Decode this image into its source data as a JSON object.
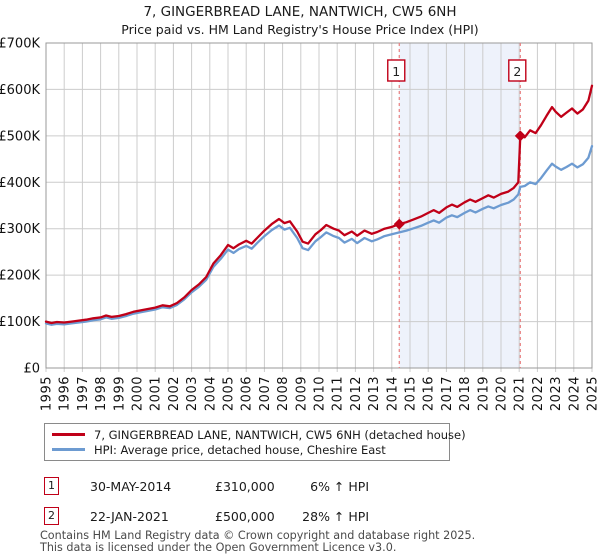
{
  "title": "7, GINGERBREAD LANE, NANTWICH, CW5 6NH",
  "subtitle": "Price paid vs. HM Land Registry's House Price Index (HPI)",
  "chart_data": {
    "type": "line",
    "x_axis": {
      "range": [
        1995,
        2025
      ],
      "tick_labels": [
        "1995",
        "1996",
        "1997",
        "1998",
        "1999",
        "2000",
        "2001",
        "2002",
        "2003",
        "2004",
        "2005",
        "2006",
        "2007",
        "2008",
        "2009",
        "2010",
        "2011",
        "2012",
        "2013",
        "2014",
        "2015",
        "2016",
        "2017",
        "2018",
        "2019",
        "2020",
        "2021",
        "2022",
        "2023",
        "2024",
        "2025"
      ]
    },
    "y_axis": {
      "range": [
        0,
        700
      ],
      "unit": "£K",
      "tick_labels": [
        "£0",
        "£100K",
        "£200K",
        "£300K",
        "£400K",
        "£500K",
        "£600K",
        "£700K"
      ],
      "tick_values": [
        0,
        100,
        200,
        300,
        400,
        500,
        600,
        700
      ]
    },
    "x": [
      1995.0,
      1995.3,
      1995.6,
      1996.0,
      1996.4,
      1996.8,
      1997.2,
      1997.6,
      1998.0,
      1998.3,
      1998.6,
      1999.0,
      1999.4,
      1999.8,
      2000.2,
      2000.6,
      2001.0,
      2001.4,
      2001.8,
      2002.2,
      2002.6,
      2003.0,
      2003.4,
      2003.8,
      2004.2,
      2004.6,
      2005.0,
      2005.3,
      2005.6,
      2006.0,
      2006.3,
      2006.6,
      2007.0,
      2007.4,
      2007.8,
      2008.1,
      2008.4,
      2008.8,
      2009.1,
      2009.4,
      2009.8,
      2010.1,
      2010.4,
      2010.8,
      2011.1,
      2011.4,
      2011.8,
      2012.1,
      2012.5,
      2012.9,
      2013.2,
      2013.6,
      2014.0,
      2014.41,
      2014.8,
      2015.2,
      2015.6,
      2016.0,
      2016.3,
      2016.6,
      2017.0,
      2017.3,
      2017.6,
      2018.0,
      2018.3,
      2018.6,
      2019.0,
      2019.3,
      2019.6,
      2020.0,
      2020.4,
      2020.7,
      2020.95,
      2021.06,
      2021.3,
      2021.6,
      2021.9,
      2022.2,
      2022.5,
      2022.8,
      2023.0,
      2023.3,
      2023.6,
      2023.9,
      2024.2,
      2024.5,
      2024.8,
      2025.0
    ],
    "series": [
      {
        "name": "7, GINGERBREAD LANE, NANTWICH, CW5 6NH (detached house)",
        "color": "#c00018",
        "values": [
          100,
          97,
          99,
          98,
          100,
          102,
          104,
          107,
          109,
          113,
          110,
          112,
          116,
          121,
          124,
          127,
          130,
          135,
          133,
          140,
          152,
          168,
          180,
          196,
          225,
          243,
          265,
          258,
          266,
          274,
          268,
          280,
          296,
          310,
          321,
          312,
          316,
          294,
          272,
          268,
          288,
          297,
          308,
          300,
          296,
          286,
          294,
          285,
          296,
          289,
          293,
          300,
          304,
          310,
          314,
          320,
          326,
          334,
          340,
          334,
          346,
          352,
          347,
          357,
          363,
          358,
          366,
          372,
          367,
          375,
          380,
          388,
          400,
          500,
          497,
          512,
          506,
          523,
          543,
          562,
          552,
          541,
          550,
          559,
          548,
          557,
          576,
          608
        ]
      },
      {
        "name": "HPI: Average price, detached house, Cheshire East",
        "color": "#6d9bd1",
        "values": [
          96,
          93,
          95,
          94,
          96,
          98,
          100,
          103,
          105,
          109,
          106,
          108,
          112,
          117,
          120,
          123,
          126,
          131,
          129,
          136,
          148,
          163,
          175,
          190,
          218,
          235,
          255,
          248,
          256,
          263,
          257,
          269,
          284,
          297,
          307,
          298,
          302,
          280,
          258,
          254,
          273,
          282,
          292,
          284,
          280,
          270,
          278,
          269,
          280,
          273,
          277,
          284,
          288,
          292,
          296,
          301,
          306,
          313,
          318,
          313,
          324,
          329,
          325,
          334,
          340,
          335,
          343,
          348,
          344,
          351,
          356,
          363,
          374,
          390,
          392,
          400,
          396,
          409,
          425,
          440,
          434,
          427,
          433,
          440,
          432,
          439,
          453,
          478
        ]
      }
    ],
    "markers": [
      {
        "label": "1",
        "x": 2014.41,
        "value": 310
      },
      {
        "label": "2",
        "x": 2021.06,
        "value": 500
      }
    ],
    "shaded_region": {
      "from": 2014.41,
      "to": 2021.06
    },
    "colors": {
      "shade": "#eef2fb",
      "grid": "#cccccc",
      "border": "#999999",
      "marker_line": "#e87e7e",
      "badge_text": "#222222"
    },
    "legend_position": "bottom",
    "grid": true
  },
  "annotations": [
    {
      "num": "1",
      "date": "30-MAY-2014",
      "price": "£310,000",
      "hpi": "6% ↑ HPI"
    },
    {
      "num": "2",
      "date": "22-JAN-2021",
      "price": "£500,000",
      "hpi": "28% ↑ HPI"
    }
  ],
  "footer": {
    "line1": "Contains HM Land Registry data © Crown copyright and database right 2025.",
    "line2": "This data is licensed under the Open Government Licence v3.0."
  }
}
